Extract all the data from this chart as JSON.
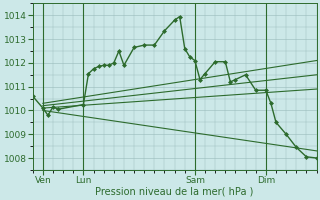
{
  "bg_color": "#cce8e8",
  "grid_color": "#99bbbb",
  "line_color": "#2d6b2d",
  "marker_color": "#2d6b2d",
  "ylim": [
    1007.5,
    1014.5
  ],
  "yticks": [
    1008,
    1009,
    1010,
    1011,
    1012,
    1013,
    1014
  ],
  "xlabel": "Pression niveau de la mer( hPa )",
  "xlabel_fontsize": 7,
  "tick_fontsize": 6.5,
  "xlim": [
    0,
    56
  ],
  "xtick_positions": [
    2,
    10,
    32,
    46
  ],
  "xtick_labels": [
    "Ven",
    "Lun",
    "Sam",
    "Dim"
  ],
  "vline_positions": [
    2,
    10,
    32,
    46
  ],
  "main_line_x": [
    0,
    2,
    3,
    4,
    5,
    10,
    11,
    12,
    13,
    14,
    15,
    16,
    17,
    18,
    20,
    22,
    24,
    26,
    28,
    29,
    30,
    31,
    32,
    33,
    34,
    36,
    38,
    39,
    40,
    42,
    44,
    46,
    47,
    48,
    50,
    52,
    54,
    56
  ],
  "main_line_y": [
    1010.6,
    1010.1,
    1009.8,
    1010.15,
    1010.05,
    1010.25,
    1011.55,
    1011.75,
    1011.85,
    1011.9,
    1011.9,
    1012.0,
    1012.5,
    1011.9,
    1012.65,
    1012.75,
    1012.75,
    1013.35,
    1013.8,
    1013.95,
    1012.6,
    1012.25,
    1012.1,
    1011.3,
    1011.55,
    1012.05,
    1012.05,
    1011.2,
    1011.3,
    1011.5,
    1010.85,
    1010.85,
    1010.3,
    1009.5,
    1009.0,
    1008.45,
    1008.05,
    1008.0
  ],
  "trend_lines": [
    {
      "x": [
        2,
        56
      ],
      "y": [
        1010.3,
        1012.1
      ]
    },
    {
      "x": [
        2,
        56
      ],
      "y": [
        1010.2,
        1011.5
      ]
    },
    {
      "x": [
        2,
        56
      ],
      "y": [
        1010.1,
        1010.9
      ]
    },
    {
      "x": [
        2,
        56
      ],
      "y": [
        1010.0,
        1008.3
      ]
    }
  ]
}
